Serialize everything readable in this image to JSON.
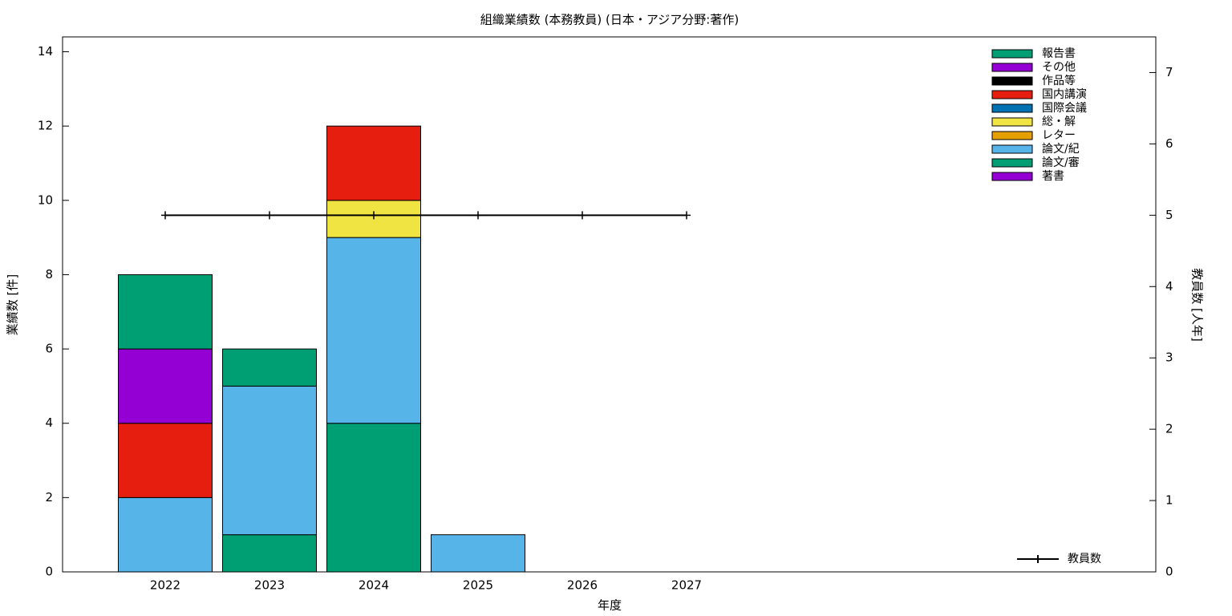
{
  "chart_data": {
    "type": "bar",
    "stacked": true,
    "title": "組織業績数 (本務教員) (日本・アジア分野:著作)",
    "x_label": "年度",
    "y_label": "業績数 [件]",
    "y2_label": "教員数 [人年]",
    "categories": [
      "2022",
      "2023",
      "2024",
      "2025",
      "2026",
      "2027"
    ],
    "series": [
      {
        "name": "著書",
        "color": "#9400d3",
        "values": [
          0,
          0,
          0,
          0,
          0,
          0
        ]
      },
      {
        "name": "論文/審",
        "color": "#009e73",
        "values": [
          0,
          1,
          4,
          0,
          0,
          0
        ]
      },
      {
        "name": "論文/紀",
        "color": "#56b4e9",
        "values": [
          2,
          4,
          5,
          1,
          0,
          0
        ]
      },
      {
        "name": "レター",
        "color": "#e69f00",
        "values": [
          0,
          0,
          0,
          0,
          0,
          0
        ]
      },
      {
        "name": "総・解",
        "color": "#f0e442",
        "values": [
          0,
          0,
          1,
          0,
          0,
          0
        ]
      },
      {
        "name": "国際会議",
        "color": "#0072b2",
        "values": [
          0,
          0,
          0,
          0,
          0,
          0
        ]
      },
      {
        "name": "国内講演",
        "color": "#e51e10",
        "values": [
          2,
          0,
          2,
          0,
          0,
          0
        ]
      },
      {
        "name": "作品等",
        "color": "#000000",
        "values": [
          0,
          0,
          0,
          0,
          0,
          0
        ]
      },
      {
        "name": "その他",
        "color": "#9400d3",
        "values": [
          2,
          0,
          0,
          0,
          0,
          0
        ]
      },
      {
        "name": "報告書",
        "color": "#009e73",
        "values": [
          2,
          1,
          0,
          0,
          0,
          0
        ]
      },
      {
        "name": "教員数",
        "color": "#000000",
        "type": "line",
        "axis": "y2",
        "values": [
          5,
          5,
          5,
          5,
          5,
          5
        ]
      }
    ],
    "ylim": [
      0,
      14.4
    ],
    "yticks": [
      0,
      2,
      4,
      6,
      8,
      10,
      12,
      14
    ],
    "y2lim": [
      0,
      7.5
    ],
    "y2ticks": [
      0,
      1,
      2,
      3,
      4,
      5,
      6,
      7
    ],
    "legend": "top right"
  }
}
